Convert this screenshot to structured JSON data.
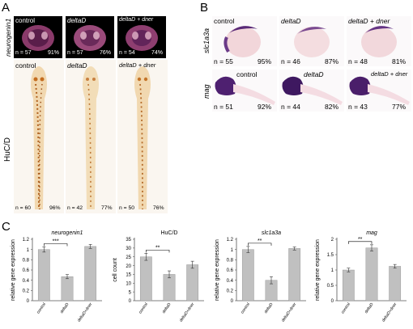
{
  "panels": {
    "A": {
      "letter": "A",
      "row_labels": {
        "top": "neurogenin1",
        "bottom": "HuC/D"
      },
      "columns": [
        {
          "condition": "control",
          "top_n": "n = 57",
          "top_pct": "91%",
          "bottom_n": "n = 60",
          "bottom_pct": "96%"
        },
        {
          "condition": "deltaD",
          "top_n": "n = 57",
          "top_pct": "76%",
          "bottom_n": "n = 42",
          "bottom_pct": "77%"
        },
        {
          "condition": "deltaD + dner",
          "top_n": "n = 54",
          "top_pct": "74%",
          "bottom_n": "n = 50",
          "bottom_pct": "76%"
        }
      ]
    },
    "B": {
      "letter": "B",
      "row_labels": {
        "top": "slc1a3a",
        "bottom": "mag"
      },
      "columns": [
        {
          "condition": "control",
          "top_n": "n = 55",
          "top_pct": "95%",
          "bottom_n": "n = 51",
          "bottom_pct": "92%"
        },
        {
          "condition": "deltaD",
          "top_n": "n = 46",
          "top_pct": "87%",
          "bottom_n": "n = 44",
          "bottom_pct": "82%"
        },
        {
          "condition": "deltaD + dner",
          "top_n": "n = 48",
          "top_pct": "81%",
          "bottom_n": "n = 43",
          "bottom_pct": "77%"
        }
      ]
    },
    "C": {
      "letter": "C"
    }
  },
  "colors": {
    "bar": "#c0c0c0",
    "bar_edge": "#8c8c8c",
    "axis": "#555555",
    "stain_purple": "#5a2a78",
    "stain_brown": "#b0601c"
  },
  "chart_data": [
    {
      "type": "bar",
      "title": "neurogenin1",
      "ylabel": "relative gene expression",
      "xlabel": "",
      "categories": [
        "control",
        "deltaD",
        "deltaD+dner"
      ],
      "values": [
        1.0,
        0.47,
        1.06
      ],
      "errors": [
        0.05,
        0.04,
        0.04
      ],
      "ylim": [
        0,
        1.2
      ],
      "yticks": [
        "0",
        "0.2",
        "0.4",
        "0.6",
        "0.8",
        "1",
        "1.2"
      ],
      "significance": [
        {
          "pair": [
            0,
            1
          ],
          "label": "***"
        }
      ]
    },
    {
      "type": "bar",
      "title": "HuC/D",
      "ylabel": "cell count",
      "xlabel": "",
      "categories": [
        "control",
        "deltaD",
        "deltaD+dner"
      ],
      "values": [
        25,
        15,
        20.5
      ],
      "errors": [
        2,
        2,
        2
      ],
      "ylim": [
        0,
        35
      ],
      "yticks": [
        "0",
        "5",
        "10",
        "15",
        "20",
        "25",
        "30",
        "35"
      ],
      "significance": [
        {
          "pair": [
            0,
            1
          ],
          "label": "**"
        }
      ]
    },
    {
      "type": "bar",
      "title": "slc1a3a",
      "ylabel": "relative gene expression",
      "xlabel": "",
      "categories": [
        "control",
        "deltaD",
        "deltaD+dner"
      ],
      "values": [
        1.0,
        0.4,
        1.02
      ],
      "errors": [
        0.06,
        0.07,
        0.03
      ],
      "ylim": [
        0,
        1.2
      ],
      "yticks": [
        "0",
        "0.2",
        "0.4",
        "0.6",
        "0.8",
        "1",
        "1.2"
      ],
      "significance": [
        {
          "pair": [
            0,
            1
          ],
          "label": "**"
        }
      ]
    },
    {
      "type": "bar",
      "title": "mag",
      "ylabel": "relative gene expression",
      "xlabel": "",
      "categories": [
        "control",
        "deltaD",
        "deltaD+dner"
      ],
      "values": [
        1.0,
        1.72,
        1.12
      ],
      "errors": [
        0.06,
        0.1,
        0.06
      ],
      "ylim": [
        0,
        2
      ],
      "yticks": [
        "0",
        "0.5",
        "1",
        "1.5",
        "2"
      ],
      "significance": [
        {
          "pair": [
            0,
            1
          ],
          "label": "**"
        }
      ]
    }
  ]
}
